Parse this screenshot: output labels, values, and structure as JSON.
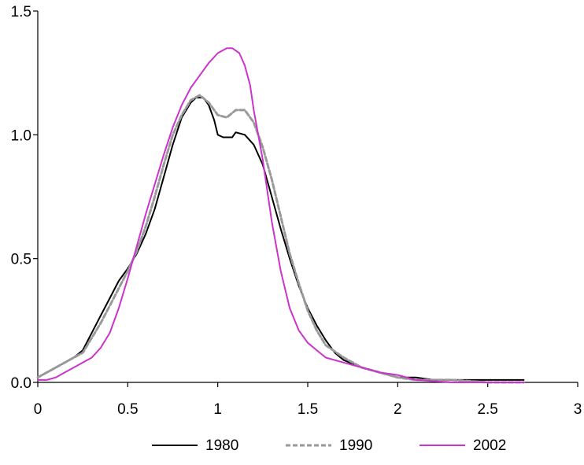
{
  "chart_data": {
    "type": "line",
    "title": "",
    "xlabel": "",
    "ylabel": "",
    "xlim": [
      0,
      3
    ],
    "ylim": [
      0,
      1.5
    ],
    "x_ticks": [
      0,
      0.5,
      1,
      1.5,
      2,
      2.5,
      3
    ],
    "x_tick_labels": [
      "0",
      "0.5",
      "1",
      "1.5",
      "2",
      "2.5",
      "3"
    ],
    "y_ticks": [
      0,
      0.5,
      1.0,
      1.5
    ],
    "y_tick_labels": [
      "0.0",
      "0.5",
      "1.0",
      "1.5"
    ],
    "grid": false,
    "legend_position": "bottom",
    "series": [
      {
        "name": "1980",
        "color": "#000000",
        "style": "solid",
        "x": [
          0,
          0.05,
          0.1,
          0.15,
          0.2,
          0.25,
          0.3,
          0.35,
          0.4,
          0.45,
          0.5,
          0.55,
          0.6,
          0.65,
          0.7,
          0.75,
          0.8,
          0.85,
          0.88,
          0.92,
          0.95,
          0.98,
          1.0,
          1.03,
          1.08,
          1.1,
          1.15,
          1.2,
          1.25,
          1.3,
          1.35,
          1.4,
          1.45,
          1.5,
          1.55,
          1.6,
          1.65,
          1.7,
          1.8,
          1.9,
          2.0,
          2.05,
          2.1,
          2.2,
          2.3,
          2.5,
          2.7
        ],
        "values": [
          0.02,
          0.04,
          0.06,
          0.08,
          0.1,
          0.13,
          0.2,
          0.27,
          0.34,
          0.41,
          0.46,
          0.52,
          0.6,
          0.7,
          0.83,
          0.96,
          1.07,
          1.13,
          1.15,
          1.15,
          1.12,
          1.06,
          1.0,
          0.99,
          0.99,
          1.01,
          1.0,
          0.96,
          0.88,
          0.75,
          0.62,
          0.5,
          0.39,
          0.3,
          0.23,
          0.17,
          0.12,
          0.09,
          0.06,
          0.04,
          0.02,
          0.02,
          0.02,
          0.01,
          0.01,
          0.01,
          0.01
        ]
      },
      {
        "name": "1990",
        "color": "#999999",
        "style": "dashed",
        "x": [
          0,
          0.05,
          0.1,
          0.15,
          0.2,
          0.25,
          0.3,
          0.35,
          0.4,
          0.45,
          0.5,
          0.55,
          0.6,
          0.65,
          0.7,
          0.75,
          0.8,
          0.85,
          0.9,
          0.95,
          1.0,
          1.05,
          1.1,
          1.15,
          1.2,
          1.25,
          1.3,
          1.35,
          1.4,
          1.45,
          1.5,
          1.55,
          1.6,
          1.7,
          1.8,
          1.9,
          2.0,
          2.1,
          2.3,
          2.5,
          2.7
        ],
        "values": [
          0.02,
          0.04,
          0.06,
          0.08,
          0.1,
          0.12,
          0.18,
          0.24,
          0.31,
          0.38,
          0.45,
          0.53,
          0.63,
          0.75,
          0.88,
          1.0,
          1.08,
          1.14,
          1.16,
          1.13,
          1.08,
          1.07,
          1.1,
          1.1,
          1.05,
          0.95,
          0.82,
          0.67,
          0.52,
          0.4,
          0.29,
          0.21,
          0.15,
          0.1,
          0.06,
          0.04,
          0.02,
          0.01,
          0.01,
          0.0,
          0.0
        ]
      },
      {
        "name": "2002",
        "color": "#cc33cc",
        "style": "solid",
        "x": [
          0,
          0.05,
          0.1,
          0.15,
          0.2,
          0.25,
          0.3,
          0.35,
          0.4,
          0.45,
          0.5,
          0.55,
          0.6,
          0.65,
          0.7,
          0.75,
          0.8,
          0.85,
          0.9,
          0.95,
          1.0,
          1.05,
          1.08,
          1.12,
          1.15,
          1.18,
          1.2,
          1.25,
          1.3,
          1.35,
          1.4,
          1.45,
          1.5,
          1.55,
          1.6,
          1.7,
          1.8,
          1.9,
          2.0,
          2.1,
          2.3,
          2.5,
          2.7
        ],
        "values": [
          0.01,
          0.01,
          0.02,
          0.04,
          0.06,
          0.08,
          0.1,
          0.14,
          0.2,
          0.3,
          0.42,
          0.55,
          0.68,
          0.8,
          0.92,
          1.03,
          1.12,
          1.19,
          1.24,
          1.29,
          1.33,
          1.35,
          1.35,
          1.33,
          1.28,
          1.2,
          1.1,
          0.9,
          0.65,
          0.45,
          0.3,
          0.21,
          0.16,
          0.13,
          0.1,
          0.08,
          0.06,
          0.04,
          0.03,
          0.01,
          0.0,
          0.0,
          0.0
        ]
      }
    ]
  }
}
